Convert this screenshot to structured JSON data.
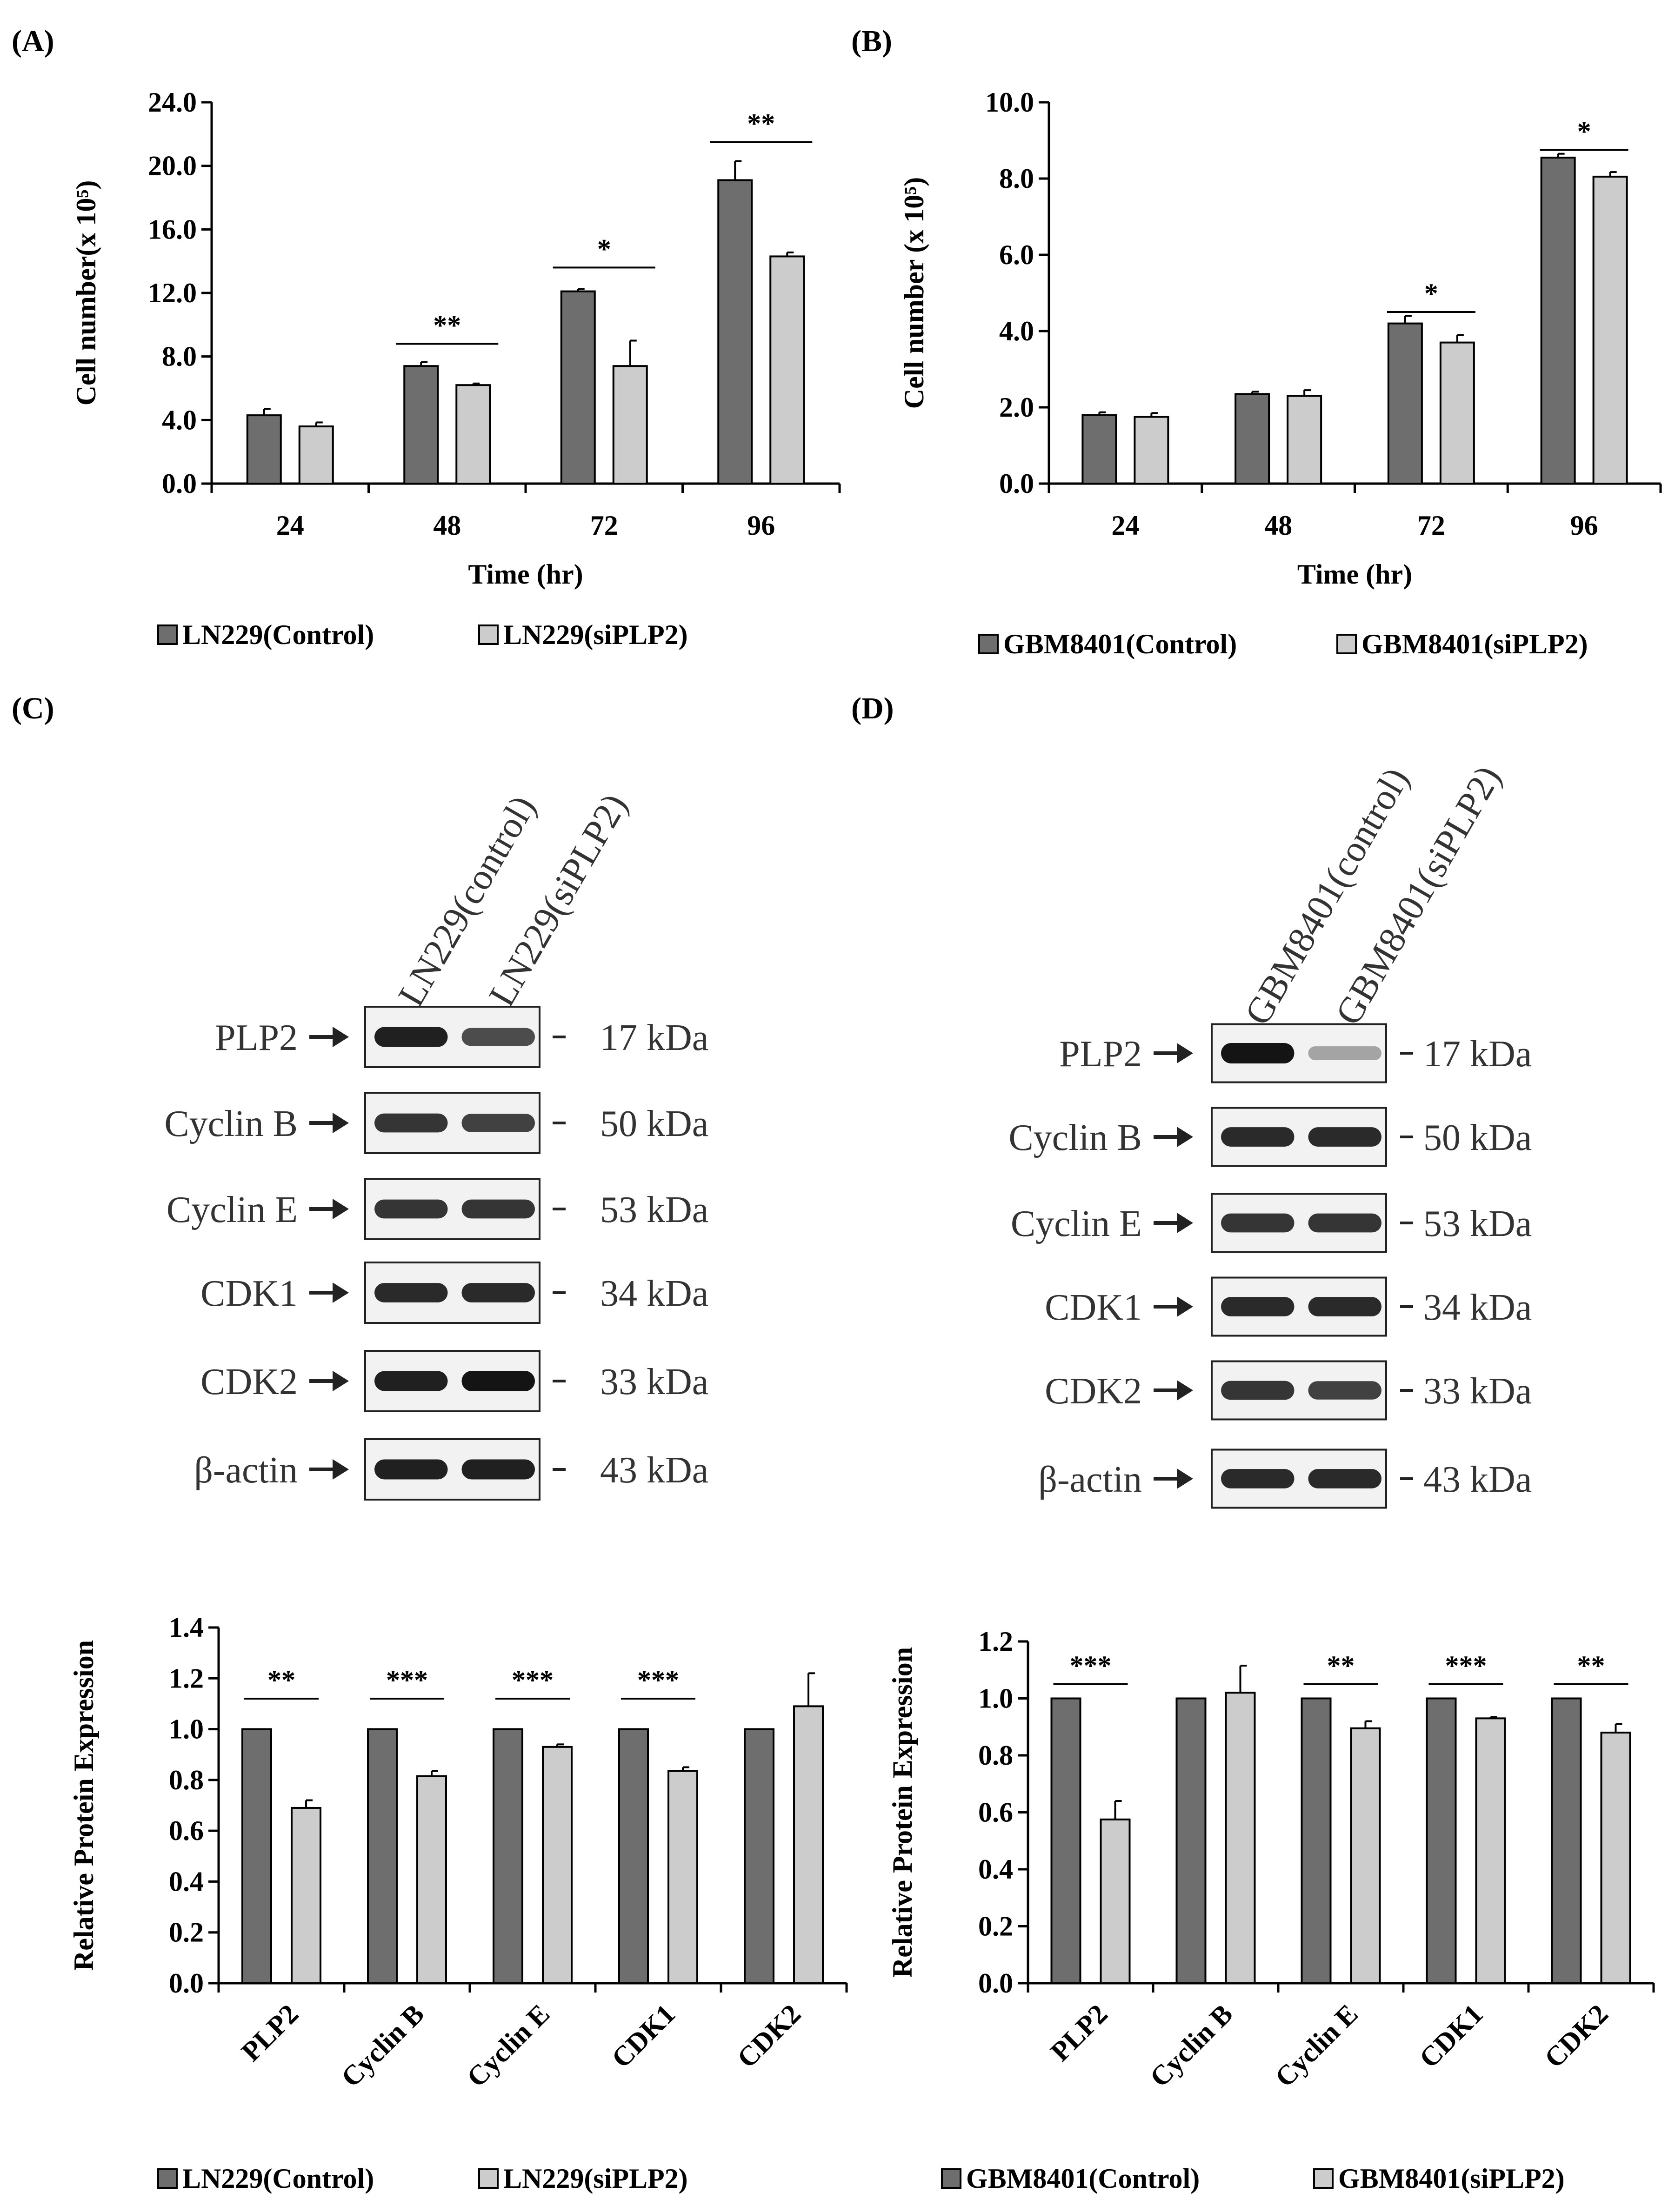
{
  "panels": [
    {
      "id": "A",
      "label": "(A)"
    },
    {
      "id": "B",
      "label": "(B)"
    },
    {
      "id": "C",
      "label": "(C)"
    },
    {
      "id": "D",
      "label": "(D)"
    }
  ],
  "colors": {
    "control": "#6e6e6e",
    "sirna": "#cccccc",
    "band": "#141414"
  },
  "chart_data": [
    {
      "id": "A",
      "type": "bar",
      "title": "",
      "xlabel": "Time (hr)",
      "ylabel": "Cell number(x 10⁵)",
      "categories": [
        "24",
        "48",
        "72",
        "96"
      ],
      "ylim": [
        0,
        24
      ],
      "yticks": [
        "0.0",
        "4.0",
        "8.0",
        "12.0",
        "16.0",
        "20.0",
        "24.0"
      ],
      "series": [
        {
          "name": "LN229(Control)",
          "values": [
            4.3,
            7.4,
            12.1,
            19.1
          ],
          "errors": [
            0.4,
            0.25,
            0.15,
            1.2
          ]
        },
        {
          "name": "LN229(siPLP2)",
          "values": [
            3.6,
            6.2,
            7.4,
            14.3
          ],
          "errors": [
            0.25,
            0.1,
            1.6,
            0.25
          ]
        }
      ],
      "significance": [
        {
          "category": 1,
          "mark": "**",
          "y": 8.8
        },
        {
          "category": 2,
          "mark": "*",
          "y": 13.6
        },
        {
          "category": 3,
          "mark": "**",
          "y": 21.5
        }
      ]
    },
    {
      "id": "B",
      "type": "bar",
      "title": "",
      "xlabel": "Time (hr)",
      "ylabel": "Cell number (x 10⁵)",
      "categories": [
        "24",
        "48",
        "72",
        "96"
      ],
      "ylim": [
        0,
        10
      ],
      "yticks": [
        "0.0",
        "2.0",
        "4.0",
        "6.0",
        "8.0",
        "10.0"
      ],
      "series": [
        {
          "name": "GBM8401(Control)",
          "values": [
            1.8,
            2.35,
            4.2,
            8.55
          ],
          "errors": [
            0.07,
            0.06,
            0.2,
            0.1
          ]
        },
        {
          "name": "GBM8401(siPLP2)",
          "values": [
            1.75,
            2.3,
            3.7,
            8.05
          ],
          "errors": [
            0.1,
            0.15,
            0.2,
            0.12
          ]
        }
      ],
      "significance": [
        {
          "category": 2,
          "mark": "*",
          "y": 4.5
        },
        {
          "category": 3,
          "mark": "*",
          "y": 8.75
        }
      ]
    },
    {
      "id": "C",
      "type": "bar",
      "title": "",
      "xlabel": "",
      "ylabel": "Relative Protein Expression",
      "categories": [
        "PLP2",
        "Cyclin B",
        "Cyclin E",
        "CDK1",
        "CDK2"
      ],
      "ylim": [
        0,
        1.4
      ],
      "yticks": [
        "0.0",
        "0.2",
        "0.4",
        "0.6",
        "0.8",
        "1.0",
        "1.2",
        "1.4"
      ],
      "series": [
        {
          "name": "LN229(Control)",
          "values": [
            1.0,
            1.0,
            1.0,
            1.0,
            1.0
          ],
          "errors": [
            0,
            0,
            0,
            0,
            0
          ]
        },
        {
          "name": "LN229(siPLP2)",
          "values": [
            0.69,
            0.815,
            0.93,
            0.835,
            1.09
          ],
          "errors": [
            0.03,
            0.02,
            0.01,
            0.015,
            0.13
          ]
        }
      ],
      "significance": [
        {
          "category": 0,
          "mark": "**",
          "y": 1.12
        },
        {
          "category": 1,
          "mark": "***",
          "y": 1.12
        },
        {
          "category": 2,
          "mark": "***",
          "y": 1.12
        },
        {
          "category": 3,
          "mark": "***",
          "y": 1.12
        }
      ]
    },
    {
      "id": "D",
      "type": "bar",
      "title": "",
      "xlabel": "",
      "ylabel": "Relative Protein Expression",
      "categories": [
        "PLP2",
        "Cyclin B",
        "Cyclin E",
        "CDK1",
        "CDK2"
      ],
      "ylim": [
        0,
        1.2
      ],
      "yticks": [
        "0.0",
        "0.2",
        "0.4",
        "0.6",
        "0.8",
        "1.0",
        "1.2"
      ],
      "series": [
        {
          "name": "GBM8401(Control)",
          "values": [
            1.0,
            1.0,
            1.0,
            1.0,
            1.0
          ],
          "errors": [
            0,
            0,
            0,
            0,
            0
          ]
        },
        {
          "name": "GBM8401(siPLP2)",
          "values": [
            0.575,
            1.02,
            0.895,
            0.93,
            0.88
          ],
          "errors": [
            0.065,
            0.095,
            0.025,
            0.005,
            0.03
          ]
        }
      ],
      "significance": [
        {
          "category": 0,
          "mark": "***",
          "y": 1.05
        },
        {
          "category": 2,
          "mark": "**",
          "y": 1.05
        },
        {
          "category": 3,
          "mark": "***",
          "y": 1.05
        },
        {
          "category": 4,
          "mark": "**",
          "y": 1.05
        }
      ]
    }
  ],
  "blots": [
    {
      "id": "C",
      "lanes": [
        "LN229(control)",
        "LN229(siPLP2)"
      ],
      "rows": [
        {
          "protein": "PLP2",
          "kda": "17 kDa",
          "intensity": [
            0.95,
            0.75
          ]
        },
        {
          "protein": "Cyclin B",
          "kda": "50 kDa",
          "intensity": [
            0.85,
            0.8
          ]
        },
        {
          "protein": "Cyclin E",
          "kda": "53 kDa",
          "intensity": [
            0.85,
            0.85
          ]
        },
        {
          "protein": "CDK1",
          "kda": "34 kDa",
          "intensity": [
            0.9,
            0.9
          ]
        },
        {
          "protein": "CDK2",
          "kda": "33 kDa",
          "intensity": [
            0.95,
            1.0
          ]
        },
        {
          "protein": "β-actin",
          "kda": "43 kDa",
          "intensity": [
            0.95,
            0.95
          ]
        }
      ]
    },
    {
      "id": "D",
      "lanes": [
        "GBM8401(control)",
        "GBM8401(siPLP2)"
      ],
      "rows": [
        {
          "protein": "PLP2",
          "kda": "17 kDa",
          "intensity": [
            1.0,
            0.35
          ]
        },
        {
          "protein": "Cyclin B",
          "kda": "50 kDa",
          "intensity": [
            0.9,
            0.9
          ]
        },
        {
          "protein": "Cyclin E",
          "kda": "53 kDa",
          "intensity": [
            0.85,
            0.85
          ]
        },
        {
          "protein": "CDK1",
          "kda": "34 kDa",
          "intensity": [
            0.9,
            0.9
          ]
        },
        {
          "protein": "CDK2",
          "kda": "33 kDa",
          "intensity": [
            0.85,
            0.8
          ]
        },
        {
          "protein": "β-actin",
          "kda": "43 kDa",
          "intensity": [
            0.9,
            0.9
          ]
        }
      ]
    }
  ]
}
